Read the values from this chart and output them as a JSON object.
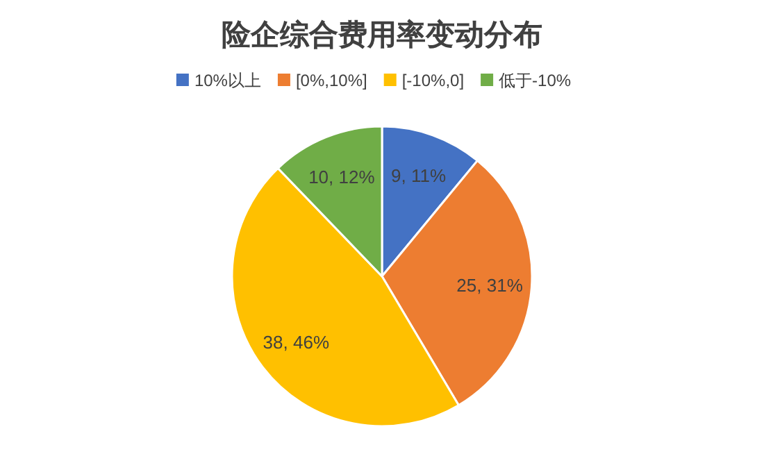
{
  "chart_data": {
    "type": "pie",
    "title": "险企综合费用率变动分布",
    "categories": [
      "10%以上",
      "[0%,10%]",
      "[-10%,0]",
      "低于-10%"
    ],
    "values": [
      9,
      25,
      38,
      10
    ],
    "colors": [
      "#4472c4",
      "#ed7d31",
      "#ffc000",
      "#70ad47"
    ],
    "value_labels": [
      "9, 11%",
      "25, 31%",
      "38, 46%",
      "10, 12%"
    ],
    "legend": "top"
  }
}
